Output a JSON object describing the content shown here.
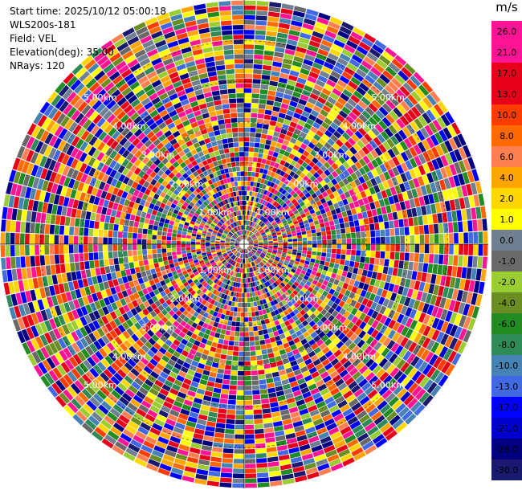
{
  "header": {
    "start_time": "Start time: 2025/10/12 05:00:18",
    "instrument": "WLS200s-181",
    "field": "Field: VEL",
    "elevation": "Elevation(deg): 35.00",
    "nrays": "NRays: 120"
  },
  "colorbar": {
    "unit": "m/s",
    "levels": [
      "26.0",
      "21.0",
      "17.0",
      "13.0",
      "10.0",
      "8.0",
      "6.0",
      "4.0",
      "2.0",
      "1.0",
      "0.0",
      "-1.0",
      "-2.0",
      "-4.0",
      "-6.0",
      "-8.0",
      "-10.0",
      "-13.0",
      "-17.0",
      "-21.0",
      "-26.0",
      "-30.0"
    ],
    "colors": [
      "#ff1493",
      "#ff1493",
      "#e8001a",
      "#e8001a",
      "#ff3c00",
      "#ff6a00",
      "#ff7f50",
      "#ffa500",
      "#ffd700",
      "#ffff00",
      "#708090",
      "#696969",
      "#9acd32",
      "#6b8e23",
      "#228b22",
      "#2e8b57",
      "#4682b4",
      "#4169e1",
      "#0000ff",
      "#0000cd",
      "#000080",
      "#191970"
    ]
  },
  "chart_data": {
    "type": "heatmap",
    "projection": "polar-ppi",
    "field": "VEL",
    "nrays": 120,
    "range_rings_km": [
      1.0,
      2.0,
      3.0,
      4.0,
      5.0
    ],
    "range_ring_labels": [
      "1.00km",
      "2.00km",
      "3.00km",
      "4.00km",
      "5.00km"
    ],
    "max_range_km": 6.0,
    "value_range": [
      -30.0,
      26.0
    ],
    "grid": true
  }
}
